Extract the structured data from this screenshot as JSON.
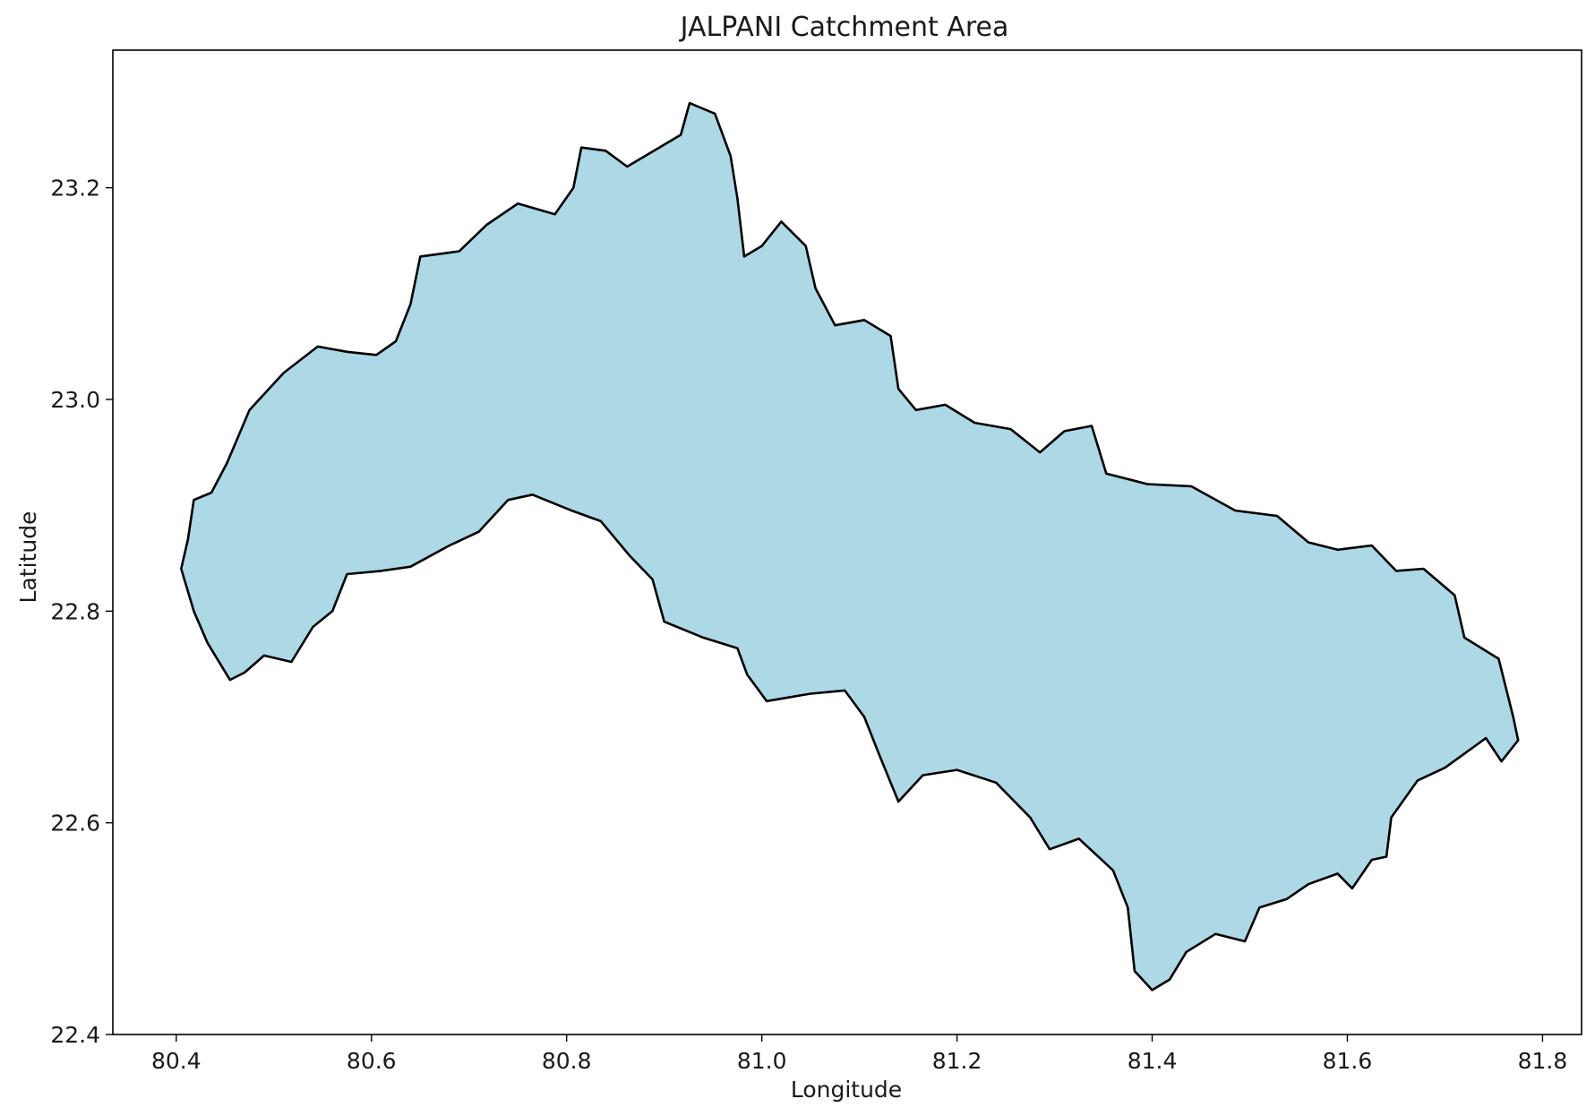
{
  "title": "JALPANI Catchment Area",
  "x_axis": {
    "label": "Longitude",
    "range": [
      80.335,
      81.84
    ],
    "ticks": [
      "80.4",
      "80.6",
      "80.8",
      "81.0",
      "81.2",
      "81.4",
      "81.6",
      "81.8"
    ]
  },
  "y_axis": {
    "label": "Latitude",
    "range": [
      22.4,
      23.33
    ],
    "ticks": [
      "22.4",
      "22.6",
      "22.8",
      "23.0",
      "23.2"
    ]
  },
  "colors": {
    "fill": "#add8e6",
    "outline": "#000000"
  },
  "catchment_boundary": [
    [
      80.405,
      22.84
    ],
    [
      80.412,
      22.868
    ],
    [
      80.418,
      22.905
    ],
    [
      80.436,
      22.912
    ],
    [
      80.452,
      22.94
    ],
    [
      80.475,
      22.99
    ],
    [
      80.51,
      23.025
    ],
    [
      80.545,
      23.05
    ],
    [
      80.575,
      23.045
    ],
    [
      80.605,
      23.042
    ],
    [
      80.625,
      23.055
    ],
    [
      80.64,
      23.09
    ],
    [
      80.65,
      23.135
    ],
    [
      80.69,
      23.14
    ],
    [
      80.718,
      23.165
    ],
    [
      80.75,
      23.185
    ],
    [
      80.788,
      23.175
    ],
    [
      80.807,
      23.2
    ],
    [
      80.815,
      23.238
    ],
    [
      80.84,
      23.235
    ],
    [
      80.862,
      23.22
    ],
    [
      80.895,
      23.238
    ],
    [
      80.917,
      23.25
    ],
    [
      80.926,
      23.28
    ],
    [
      80.952,
      23.27
    ],
    [
      80.968,
      23.23
    ],
    [
      80.975,
      23.19
    ],
    [
      80.982,
      23.135
    ],
    [
      81.0,
      23.145
    ],
    [
      81.02,
      23.168
    ],
    [
      81.045,
      23.145
    ],
    [
      81.055,
      23.105
    ],
    [
      81.075,
      23.07
    ],
    [
      81.105,
      23.075
    ],
    [
      81.132,
      23.06
    ],
    [
      81.14,
      23.01
    ],
    [
      81.158,
      22.99
    ],
    [
      81.188,
      22.995
    ],
    [
      81.218,
      22.978
    ],
    [
      81.255,
      22.972
    ],
    [
      81.285,
      22.95
    ],
    [
      81.31,
      22.97
    ],
    [
      81.338,
      22.975
    ],
    [
      81.353,
      22.93
    ],
    [
      81.395,
      22.92
    ],
    [
      81.44,
      22.918
    ],
    [
      81.485,
      22.895
    ],
    [
      81.528,
      22.89
    ],
    [
      81.56,
      22.865
    ],
    [
      81.59,
      22.858
    ],
    [
      81.625,
      22.862
    ],
    [
      81.65,
      22.838
    ],
    [
      81.678,
      22.84
    ],
    [
      81.71,
      22.815
    ],
    [
      81.72,
      22.775
    ],
    [
      81.755,
      22.755
    ],
    [
      81.77,
      22.7
    ],
    [
      81.775,
      22.678
    ],
    [
      81.758,
      22.658
    ],
    [
      81.742,
      22.68
    ],
    [
      81.7,
      22.652
    ],
    [
      81.672,
      22.64
    ],
    [
      81.645,
      22.605
    ],
    [
      81.64,
      22.568
    ],
    [
      81.625,
      22.565
    ],
    [
      81.605,
      22.538
    ],
    [
      81.59,
      22.552
    ],
    [
      81.56,
      22.542
    ],
    [
      81.538,
      22.528
    ],
    [
      81.51,
      22.52
    ],
    [
      81.495,
      22.488
    ],
    [
      81.465,
      22.495
    ],
    [
      81.435,
      22.478
    ],
    [
      81.418,
      22.452
    ],
    [
      81.4,
      22.442
    ],
    [
      81.382,
      22.46
    ],
    [
      81.375,
      22.52
    ],
    [
      81.36,
      22.555
    ],
    [
      81.325,
      22.585
    ],
    [
      81.295,
      22.575
    ],
    [
      81.275,
      22.605
    ],
    [
      81.24,
      22.638
    ],
    [
      81.2,
      22.65
    ],
    [
      81.165,
      22.645
    ],
    [
      81.14,
      22.62
    ],
    [
      81.12,
      22.665
    ],
    [
      81.105,
      22.7
    ],
    [
      81.085,
      22.725
    ],
    [
      81.05,
      22.722
    ],
    [
      81.005,
      22.715
    ],
    [
      80.985,
      22.74
    ],
    [
      80.975,
      22.765
    ],
    [
      80.94,
      22.775
    ],
    [
      80.9,
      22.79
    ],
    [
      80.888,
      22.83
    ],
    [
      80.865,
      22.852
    ],
    [
      80.835,
      22.885
    ],
    [
      80.805,
      22.895
    ],
    [
      80.765,
      22.91
    ],
    [
      80.74,
      22.905
    ],
    [
      80.71,
      22.875
    ],
    [
      80.68,
      22.862
    ],
    [
      80.64,
      22.842
    ],
    [
      80.61,
      22.838
    ],
    [
      80.575,
      22.835
    ],
    [
      80.56,
      22.8
    ],
    [
      80.54,
      22.785
    ],
    [
      80.518,
      22.752
    ],
    [
      80.49,
      22.758
    ],
    [
      80.47,
      22.742
    ],
    [
      80.455,
      22.735
    ],
    [
      80.432,
      22.77
    ],
    [
      80.418,
      22.8
    ],
    [
      80.405,
      22.84
    ]
  ]
}
